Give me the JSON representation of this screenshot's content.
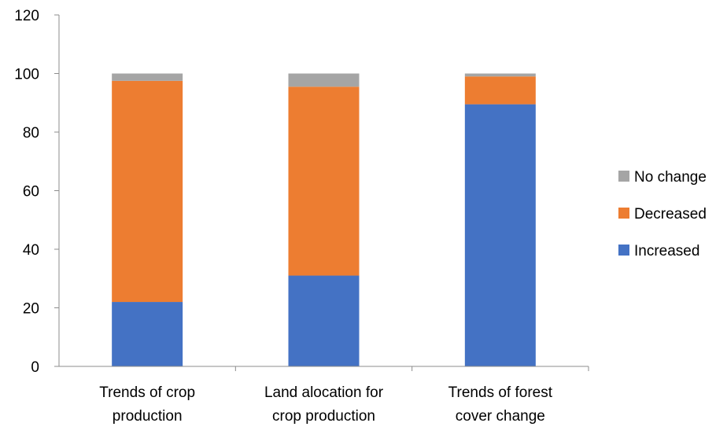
{
  "chart_data": {
    "type": "bar",
    "stacked": true,
    "categories": [
      [
        "Trends of crop",
        "production"
      ],
      [
        "Land alocation for",
        "crop production"
      ],
      [
        "Trends of forest",
        "cover change"
      ]
    ],
    "series": [
      {
        "name": "Increased",
        "color": "#4472C4",
        "values": [
          22,
          31,
          89.5
        ]
      },
      {
        "name": "Decreased",
        "color": "#ED7D31",
        "values": [
          75.5,
          64.5,
          9.5
        ]
      },
      {
        "name": "No change",
        "color": "#A5A5A5",
        "values": [
          2.5,
          4.5,
          1
        ]
      }
    ],
    "ylim": [
      0,
      120
    ],
    "yticks": [
      "0",
      "20",
      "40",
      "60",
      "80",
      "100",
      "120"
    ],
    "grid": false,
    "legend_position": "right",
    "legend_order": [
      "No change",
      "Decreased",
      "Increased"
    ]
  }
}
